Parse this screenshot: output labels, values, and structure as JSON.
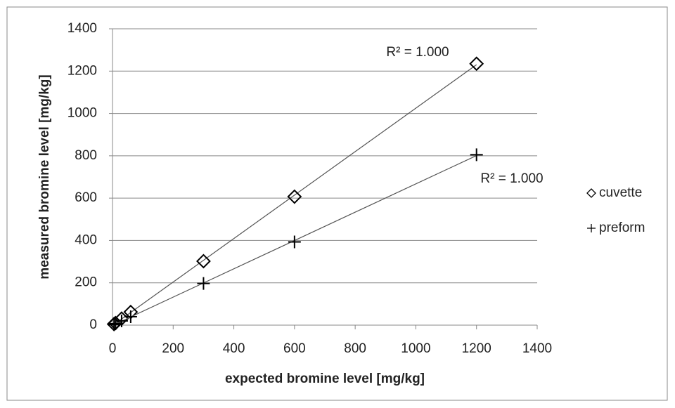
{
  "chart_data": {
    "type": "scatter",
    "x_label": "expected bromine level  [mg/kg]",
    "y_label": "measured bromine level [mg/kg]",
    "series": [
      {
        "name": "cuvette",
        "marker": "diamond",
        "color": "#000000",
        "x": [
          5,
          10,
          30,
          60,
          300,
          600,
          1200
        ],
        "values": [
          5,
          10,
          31,
          62,
          302,
          607,
          1235
        ]
      },
      {
        "name": "preform",
        "marker": "plus",
        "color": "#000000",
        "x": [
          5,
          10,
          30,
          60,
          300,
          600,
          1200
        ],
        "values": [
          3,
          7,
          20,
          40,
          197,
          393,
          805
        ]
      }
    ],
    "annotations": [
      "R² = 1.000",
      "R² = 1.000"
    ],
    "xlim": [
      0,
      1400
    ],
    "ylim": [
      0,
      1400
    ],
    "xticks": [
      0,
      200,
      400,
      600,
      800,
      1000,
      1200,
      1400
    ],
    "yticks": [
      0,
      200,
      400,
      600,
      800,
      1000,
      1200,
      1400
    ],
    "grid": true,
    "legend": "right",
    "trendline": true
  }
}
